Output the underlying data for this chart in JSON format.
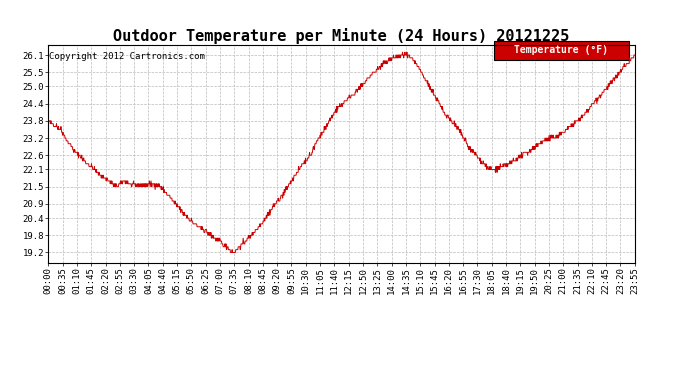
{
  "title": "Outdoor Temperature per Minute (24 Hours) 20121225",
  "copyright": "Copyright 2012 Cartronics.com",
  "legend_label": "Temperature (°F)",
  "line_color": "#cc0000",
  "legend_bg": "#cc0000",
  "legend_text_color": "#ffffff",
  "background_color": "#ffffff",
  "grid_color": "#bbbbbb",
  "yticks": [
    19.2,
    19.8,
    20.4,
    20.9,
    21.5,
    22.1,
    22.6,
    23.2,
    23.8,
    24.4,
    25.0,
    25.5,
    26.1
  ],
  "ylim": [
    18.85,
    26.45
  ],
  "xtick_labels": [
    "00:00",
    "00:35",
    "01:10",
    "01:45",
    "02:20",
    "02:55",
    "03:30",
    "04:05",
    "04:40",
    "05:15",
    "05:50",
    "06:25",
    "07:00",
    "07:35",
    "08:10",
    "08:45",
    "09:20",
    "09:55",
    "10:30",
    "11:05",
    "11:40",
    "12:15",
    "12:50",
    "13:25",
    "14:00",
    "14:35",
    "15:10",
    "15:45",
    "16:20",
    "16:55",
    "17:30",
    "18:05",
    "18:40",
    "19:15",
    "19:50",
    "20:25",
    "21:00",
    "21:35",
    "22:10",
    "22:45",
    "23:20",
    "23:55"
  ],
  "title_fontsize": 11,
  "axis_fontsize": 6.5,
  "copyright_fontsize": 6.5
}
